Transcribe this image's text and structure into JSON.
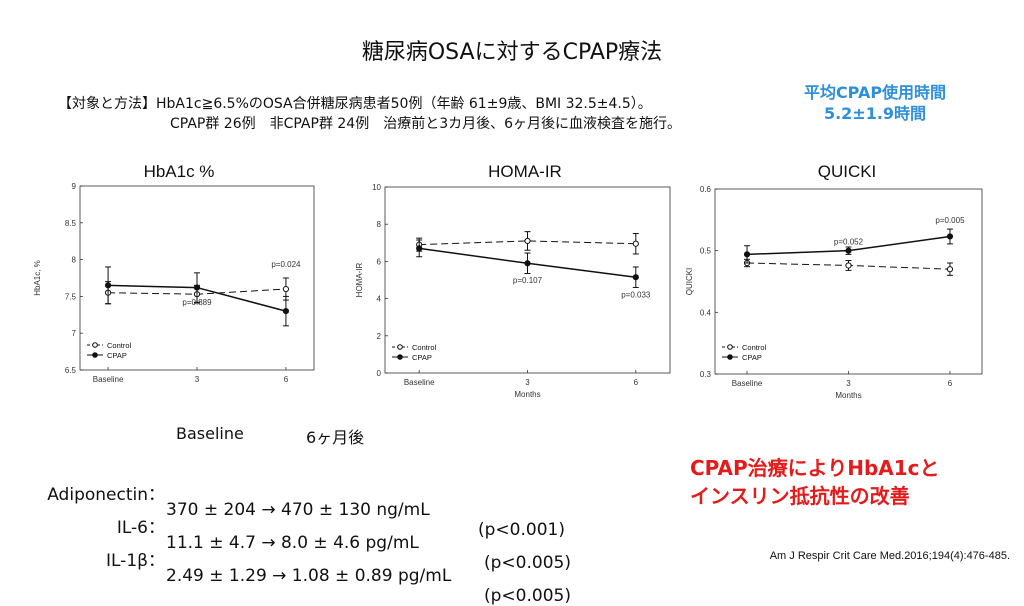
{
  "slide": {
    "title": "糖尿病OSAに対するCPAP療法",
    "method_line1": "【対象と方法】HbA1c≧6.5%のOSA合併糖尿病患者50例（年齢 61±9歳、BMI 32.5±4.5）。",
    "method_line2": "CPAP群 26例　非CPAP群 24例　治療前と3カ月後、6ヶ月後に血液検査を施行。",
    "usage_line1": "平均CPAP使用時間",
    "usage_line2": "5.2±1.9時間",
    "conclusion_line1": "CPAP治療によりHbA1cと",
    "conclusion_line2": "インスリン抵抗性の改善",
    "citation": "Am J Respir Crit Care Med.2016;194(4):476-485.",
    "accent_blue": "#2f8fd8",
    "accent_red": "#e41b1b"
  },
  "biomarkers": {
    "header_baseline": "Baseline",
    "header_6m": "6ヶ月後",
    "rows": [
      {
        "label": "Adiponectin：",
        "values": "370 ± 204 → 470 ± 130 ng/mL",
        "p": "(p<0.001)"
      },
      {
        "label": "IL-6：",
        "values": "11.1 ± 4.7 → 8.0 ± 4.6 pg/mL",
        "p": "(p<0.005)"
      },
      {
        "label": "IL-1β：",
        "values": "2.49 ± 1.29 → 1.08 ± 0.89 pg/mL",
        "p": "(p<0.005)"
      }
    ]
  },
  "chart_data": [
    {
      "type": "line",
      "title": "HbA1c %",
      "ylabel": "HbA1c, %",
      "xlabel": "",
      "categories": [
        "Baseline",
        "3",
        "6"
      ],
      "ylim": [
        6.5,
        9
      ],
      "yticks": [
        "6.5",
        "7",
        "7.5",
        "8",
        "8.5",
        "9"
      ],
      "series": [
        {
          "name": "Control",
          "values": [
            7.55,
            7.53,
            7.6
          ],
          "err": [
            0.15,
            0.12,
            0.15
          ],
          "style": "dashed-open"
        },
        {
          "name": "CPAP",
          "values": [
            7.65,
            7.62,
            7.3
          ],
          "err": [
            0.25,
            0.2,
            0.2
          ],
          "style": "solid-filled"
        }
      ],
      "annotations": [
        {
          "text": "p=0.889",
          "at_category": 1,
          "y": 7.38
        },
        {
          "text": "p=0.024",
          "at_category": 2,
          "y": 7.9
        }
      ],
      "legend": "bottom-left"
    },
    {
      "type": "line",
      "title": "HOMA-IR",
      "ylabel": "HOMA-IR",
      "xlabel": "Months",
      "categories": [
        "Baseline",
        "3",
        "6"
      ],
      "ylim": [
        0,
        10
      ],
      "yticks": [
        "0",
        "2",
        "4",
        "6",
        "8",
        "10"
      ],
      "series": [
        {
          "name": "Control",
          "values": [
            6.9,
            7.1,
            6.95
          ],
          "err": [
            0.35,
            0.5,
            0.55
          ],
          "style": "dashed-open"
        },
        {
          "name": "CPAP",
          "values": [
            6.7,
            5.9,
            5.15
          ],
          "err": [
            0.45,
            0.55,
            0.55
          ],
          "style": "solid-filled"
        }
      ],
      "annotations": [
        {
          "text": "p=0.107",
          "at_category": 1,
          "y": 4.85
        },
        {
          "text": "p=0.033",
          "at_category": 2,
          "y": 4.05
        }
      ],
      "legend": "bottom-left"
    },
    {
      "type": "line",
      "title": "QUICKI",
      "ylabel": "QUICKI",
      "xlabel": "Months",
      "categories": [
        "Baseline",
        "3",
        "6"
      ],
      "ylim": [
        0.3,
        0.6
      ],
      "yticks": [
        "0.3",
        "0.4",
        "0.5",
        "0.6"
      ],
      "series": [
        {
          "name": "Control",
          "values": [
            0.48,
            0.476,
            0.47
          ],
          "err": [
            0.006,
            0.008,
            0.01
          ],
          "style": "dashed-open"
        },
        {
          "name": "CPAP",
          "values": [
            0.494,
            0.5,
            0.523
          ],
          "err": [
            0.014,
            0.006,
            0.012
          ],
          "style": "solid-filled"
        }
      ],
      "annotations": [
        {
          "text": "p=0.052",
          "at_category": 1,
          "y": 0.51
        },
        {
          "text": "p=0.005",
          "at_category": 2,
          "y": 0.545
        }
      ],
      "legend": "bottom-left"
    }
  ]
}
